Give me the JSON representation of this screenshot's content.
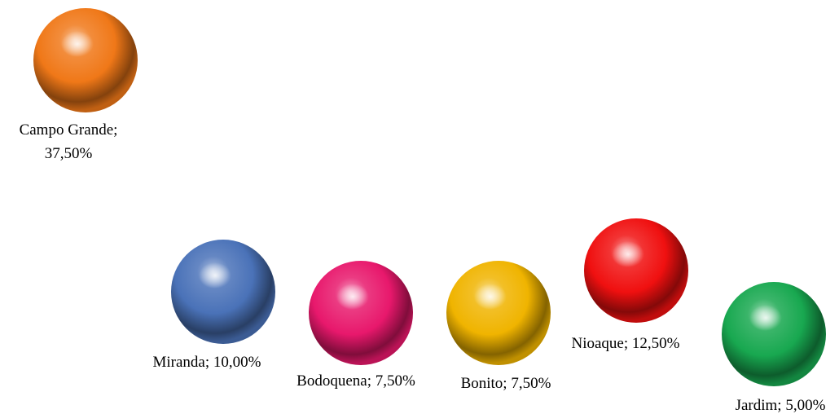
{
  "chart_data": {
    "type": "scatter",
    "title": "",
    "xlabel": "",
    "ylabel": "",
    "grid": false,
    "legend": "none",
    "points": [
      {
        "label_lines": [
          "Campo Grande;",
          "37,50%"
        ],
        "category": "Campo Grande",
        "value": 37.5,
        "value_text": "37,50%",
        "color": "#f07818"
      },
      {
        "label_lines": [
          "Miranda; 10,00%"
        ],
        "category": "Miranda",
        "value": 10.0,
        "value_text": "10,00%",
        "color": "#4a72b8"
      },
      {
        "label_lines": [
          "Bodoquena; 7,50%"
        ],
        "category": "Bodoquena",
        "value": 7.5,
        "value_text": "7,50%",
        "color": "#e8186c"
      },
      {
        "label_lines": [
          "Bonito; 7,50%"
        ],
        "category": "Bonito",
        "value": 7.5,
        "value_text": "7,50%",
        "color": "#f0b400"
      },
      {
        "label_lines": [
          "Nioaque; 12,50%"
        ],
        "category": "Nioaque",
        "value": 12.5,
        "value_text": "12,50%",
        "color": "#f01010"
      },
      {
        "label_lines": [
          "Jardim; 5,00%"
        ],
        "category": "Jardim",
        "value": 5.0,
        "value_text": "5,00%",
        "color": "#18a850"
      }
    ]
  }
}
